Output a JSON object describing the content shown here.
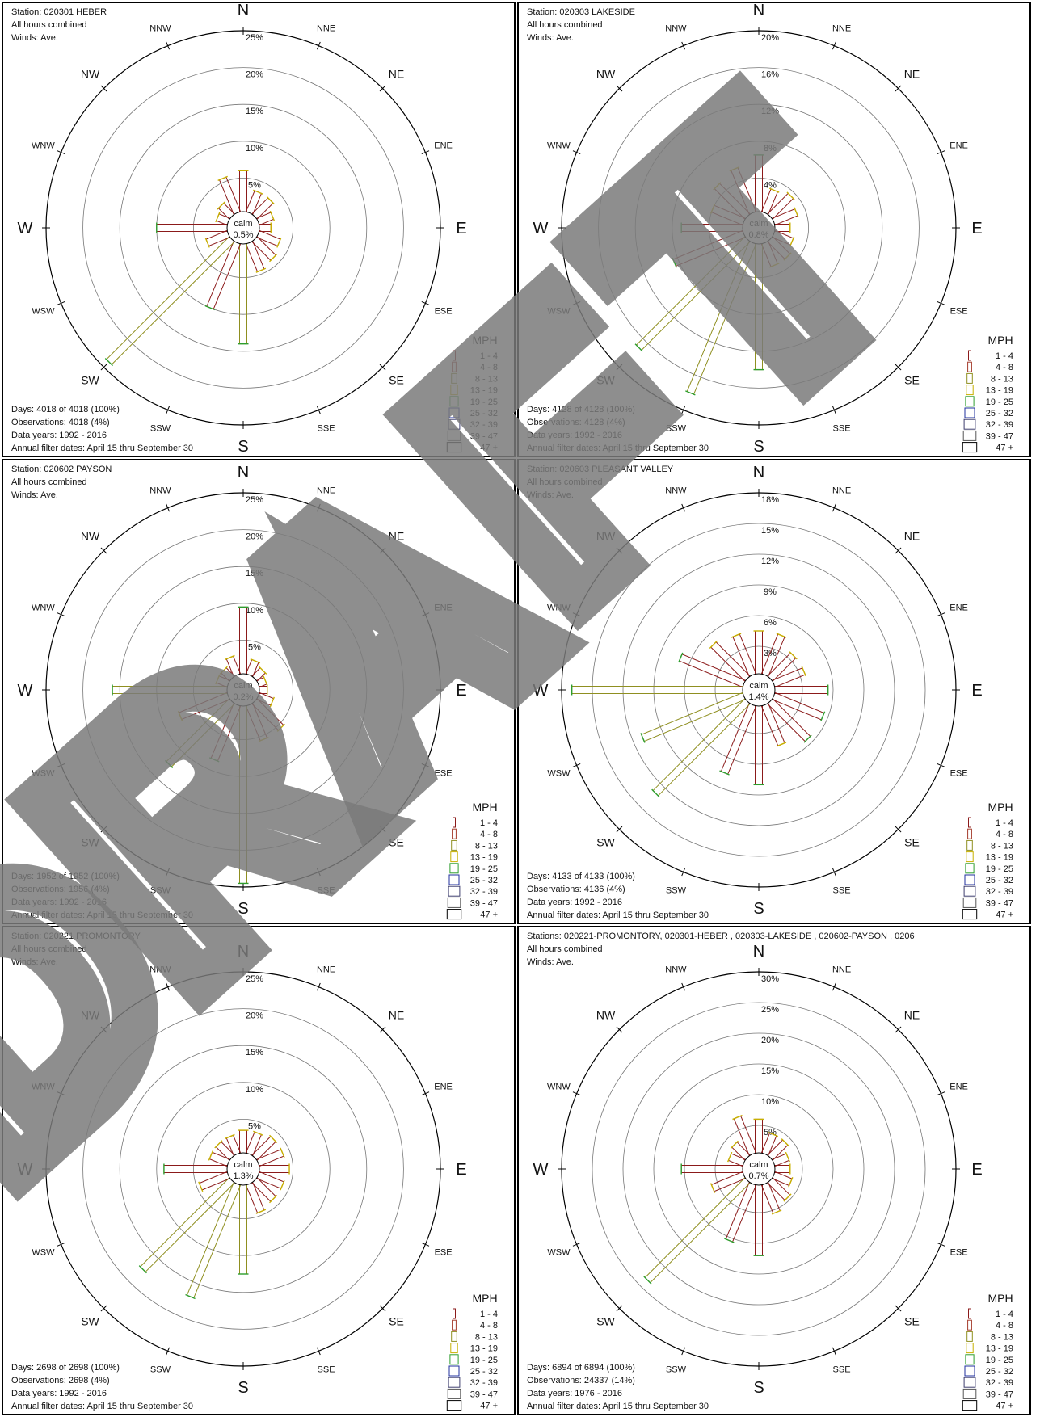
{
  "common": {
    "hours_text": "All hours combined",
    "winds_text": "Winds: Ave.",
    "calm_label": "calm",
    "legend_title": "MPH",
    "speed_bins": [
      "1 - 4",
      "4 - 8",
      "8 - 13",
      "13 - 19",
      "19 - 25",
      "25 - 32",
      "32 - 39",
      "39 - 47",
      "47 +"
    ],
    "bin_colors": [
      "#8b1a1a",
      "#a43a2a",
      "#8f8f20",
      "#c8b000",
      "#2e9e2e",
      "#1f2f9e",
      "#3e3e6e",
      "#555555",
      "#000000"
    ],
    "directions": [
      "N",
      "NNE",
      "NE",
      "ENE",
      "E",
      "ESE",
      "SE",
      "SSE",
      "S",
      "SSW",
      "SW",
      "WSW",
      "W",
      "WNW",
      "NW",
      "NNW"
    ],
    "watermark_text": "DRAFT"
  },
  "chart_data": [
    {
      "type": "wind_rose",
      "station": "Station: 020301 HEBER",
      "calm": "0.5%",
      "ring_labels": [
        "5%",
        "10%",
        "15%",
        "20%",
        "25%"
      ],
      "ring_max": 25,
      "directions": [
        "N",
        "NNE",
        "NE",
        "ENE",
        "E",
        "ESE",
        "SE",
        "SSE",
        "S",
        "SSW",
        "SW",
        "WSW",
        "W",
        "WNW",
        "NW",
        "NNW"
      ],
      "values": [
        6.0,
        3.5,
        3.5,
        2.5,
        2.0,
        3.5,
        4.0,
        4.5,
        14.0,
        10.0,
        24.0,
        3.5,
        10.0,
        2.0,
        2.5,
        5.5
      ],
      "days": "Days: 4018 of 4018 (100%)",
      "observations": "Observations: 4018 (4%)",
      "data_years": "Data years:  1992 - 2016",
      "filter": "Annual filter dates:  April 15  thru  September 30"
    },
    {
      "type": "wind_rose",
      "station": "Station: 020303 LAKESIDE",
      "calm": "0.8%",
      "ring_labels": [
        "4%",
        "8%",
        "12%",
        "16%",
        "20%"
      ],
      "ring_max": 20,
      "directions": [
        "N",
        "NNE",
        "NE",
        "ENE",
        "E",
        "ESE",
        "SE",
        "SSE",
        "S",
        "SSW",
        "SW",
        "WSW",
        "W",
        "WNW",
        "NW",
        "NNW"
      ],
      "values": [
        6.5,
        3.0,
        3.5,
        3.0,
        2.0,
        2.5,
        3.0,
        3.0,
        14.0,
        18.0,
        17.0,
        8.5,
        7.0,
        4.0,
        5.0,
        5.5
      ],
      "days": "Days: 4128 of 4128 (100%)",
      "observations": "Observations: 4128 (4%)",
      "data_years": "Data years:  1992 - 2016",
      "filter": "Annual filter dates:  April 15  thru  September 30"
    },
    {
      "type": "wind_rose",
      "station": "Station: 020602 PAYSON",
      "calm": "0.2%",
      "ring_labels": [
        "5%",
        "10%",
        "15%",
        "20%",
        "25%"
      ],
      "ring_max": 25,
      "directions": [
        "N",
        "NNE",
        "NE",
        "ENE",
        "E",
        "ESE",
        "SE",
        "SSE",
        "S",
        "SSW",
        "SW",
        "WSW",
        "W",
        "WNW",
        "NW",
        "NNW"
      ],
      "values": [
        9.5,
        2.5,
        2.0,
        1.5,
        1.5,
        2.5,
        5.5,
        5.5,
        24.5,
        8.5,
        12.5,
        7.5,
        16.0,
        2.0,
        2.0,
        3.0
      ],
      "days": "Days: 1952 of 1952 (100%)",
      "observations": "Observations: 1956 (4%)",
      "data_years": "Data years:  1992 - 2016",
      "filter": "Annual filter dates:  April 15  thru  September 30"
    },
    {
      "type": "wind_rose",
      "station": "Station: 020603 PLEASANT VALLEY",
      "calm": "1.4%",
      "ring_labels": [
        "3%",
        "6%",
        "9%",
        "12%",
        "15%",
        "18%"
      ],
      "ring_max": 18,
      "directions": [
        "N",
        "NNE",
        "NE",
        "ENE",
        "E",
        "ESE",
        "SE",
        "SSE",
        "S",
        "SSW",
        "SW",
        "WSW",
        "W",
        "WNW",
        "NW",
        "NNW"
      ],
      "values": [
        4.5,
        4.5,
        3.5,
        3.5,
        5.5,
        5.5,
        5.5,
        4.5,
        8.0,
        7.5,
        13.0,
        11.0,
        17.0,
        7.0,
        5.0,
        4.5
      ],
      "days": "Days: 4133 of 4133 (100%)",
      "observations": "Observations: 4136 (4%)",
      "data_years": "Data years:  1992 - 2016",
      "filter": "Annual filter dates:  April 15  thru  September 30"
    },
    {
      "type": "wind_rose",
      "station": "Station: 020221 PROMONTORY",
      "calm": "1.3%",
      "ring_labels": [
        "5%",
        "10%",
        "15%",
        "20%",
        "25%"
      ],
      "ring_max": 25,
      "directions": [
        "N",
        "NNE",
        "NE",
        "ENE",
        "E",
        "ESE",
        "SE",
        "SSE",
        "S",
        "SSW",
        "SW",
        "WSW",
        "W",
        "WNW",
        "NW",
        "NNW"
      ],
      "values": [
        3.5,
        3.5,
        4.0,
        4.0,
        4.5,
        4.0,
        4.0,
        4.5,
        12.5,
        17.0,
        17.5,
        4.5,
        9.0,
        3.0,
        3.0,
        3.0
      ],
      "days": "Days: 2698 of 2698 (100%)",
      "observations": "Observations: 2698 (4%)",
      "data_years": "Data years:  1992 - 2016",
      "filter": "Annual filter dates:  April 15  thru  September 30"
    },
    {
      "type": "wind_rose",
      "station": "Stations: 020221-PROMONTORY, 020301-HEBER          , 020303-LAKESIDE          , 020602-PAYSON          , 0206",
      "calm": "0.7%",
      "ring_labels": [
        "5%",
        "10%",
        "15%",
        "20%",
        "25%",
        "30%"
      ],
      "ring_max": 30,
      "directions": [
        "N",
        "NNE",
        "NE",
        "ENE",
        "E",
        "ESE",
        "SE",
        "SSE",
        "S",
        "SSW",
        "SW",
        "WSW",
        "W",
        "WNW",
        "NW",
        "NNW"
      ],
      "values": [
        6.0,
        4.0,
        4.0,
        3.0,
        3.0,
        3.5,
        4.5,
        5.5,
        12.0,
        10.5,
        23.5,
        6.0,
        10.5,
        3.0,
        3.5,
        7.0
      ],
      "days": "Days: 6894 of 6894 (100%)",
      "observations": "Observations: 24337 (14%)",
      "data_years": "Data years:  1976 - 2016",
      "filter": "Annual filter dates:  April 15  thru  September 30"
    }
  ]
}
